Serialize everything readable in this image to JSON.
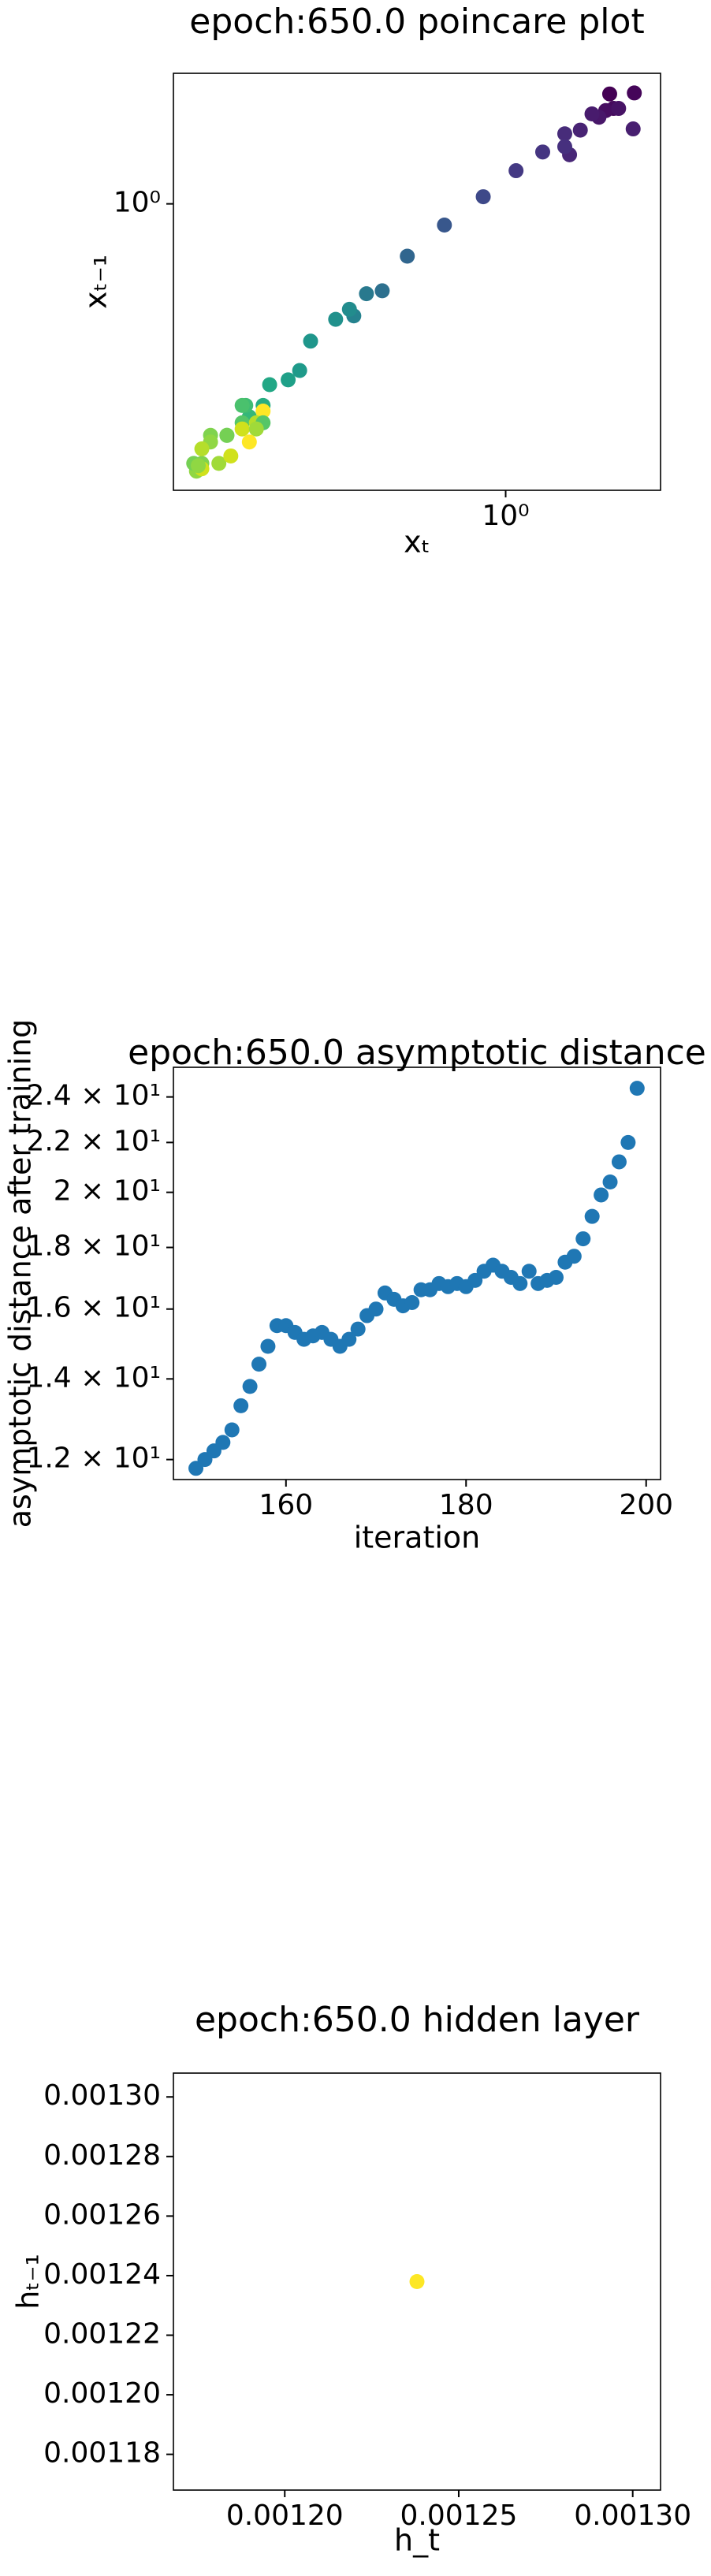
{
  "chart_data": [
    {
      "type": "scatter",
      "title": "epoch:650.0 poincare plot",
      "xlabel": "xₜ",
      "ylabel": "xₜ₋₁",
      "xscale": "log",
      "yscale": "log",
      "xlim": [
        0.21,
        2.07
      ],
      "ylim": [
        0.207,
        2.05
      ],
      "xticks": [
        {
          "value": 1,
          "label": "10⁰"
        }
      ],
      "yticks": [
        {
          "value": 1,
          "label": "10⁰"
        }
      ],
      "x": [
        1.63,
        1.83,
        1.66,
        1.6,
        1.7,
        1.55,
        1.5,
        1.82,
        1.42,
        1.35,
        1.32,
        1.32,
        1.19,
        1.05,
        0.9,
        0.75,
        0.63,
        0.56,
        0.52,
        0.49,
        0.48,
        0.45,
        0.4,
        0.38,
        0.36,
        0.33,
        0.32,
        0.31,
        0.3,
        0.295,
        0.29,
        0.29,
        0.27,
        0.27,
        0.25,
        0.25,
        0.26,
        0.24,
        0.24,
        0.234,
        0.231,
        0.24,
        0.236,
        0.32,
        0.31,
        0.29,
        0.32,
        0.31,
        0.3,
        0.275
      ],
      "y": [
        1.83,
        1.84,
        1.69,
        1.67,
        1.69,
        1.61,
        1.64,
        1.51,
        1.5,
        1.31,
        1.47,
        1.37,
        1.33,
        1.2,
        1.04,
        0.89,
        0.75,
        0.62,
        0.61,
        0.54,
        0.56,
        0.53,
        0.47,
        0.4,
        0.38,
        0.37,
        0.33,
        0.3,
        0.31,
        0.33,
        0.33,
        0.3,
        0.28,
        0.28,
        0.28,
        0.27,
        0.24,
        0.24,
        0.26,
        0.23,
        0.24,
        0.233,
        0.237,
        0.32,
        0.3,
        0.29,
        0.3,
        0.29,
        0.27,
        0.25
      ],
      "colors": [
        "#440154",
        "#450559",
        "#460a5d",
        "#470e61",
        "#471365",
        "#481769",
        "#481b6d",
        "#481f70",
        "#482374",
        "#482777",
        "#472c7a",
        "#46307e",
        "#453581",
        "#443983",
        "#3e4989",
        "#38578c",
        "#31668e",
        "#2d708e",
        "#29798e",
        "#25828e",
        "#228c8d",
        "#21918c",
        "#1f968b",
        "#1f9a8a",
        "#1fa088",
        "#22a785",
        "#27ad81",
        "#2db27d",
        "#35b779",
        "#3fbc73",
        "#4ac16d",
        "#56c667",
        "#63cb5f",
        "#75d054",
        "#7fd34e",
        "#90d743",
        "#a0da39",
        "#7fd34e",
        "#b5de2b",
        "#90d743",
        "#75d054",
        "#d0e11c",
        "#90d743",
        "#fde725",
        "#b5de2b",
        "#d0e11c",
        "#56c667",
        "#a0da39",
        "#fde725",
        "#d0e11c"
      ]
    },
    {
      "type": "scatter",
      "title": "epoch:650.0 asymptotic distance",
      "xlabel": "iteration",
      "ylabel": "asymptotic distance after training",
      "xscale": "linear",
      "yscale": "log",
      "color": "#1f77b4",
      "xlim": [
        147.5,
        201.6
      ],
      "ylim": [
        11.55,
        25.4
      ],
      "xticks": [
        160,
        180,
        200
      ],
      "yticks": [
        {
          "value": 12,
          "label": "1.2 × 10¹"
        },
        {
          "value": 14,
          "label": "1.4 × 10¹"
        },
        {
          "value": 16,
          "label": "1.6 × 10¹"
        },
        {
          "value": 18,
          "label": "1.8 × 10¹"
        },
        {
          "value": 20,
          "label": "2 × 10¹"
        },
        {
          "value": 22,
          "label": "2.2 × 10¹"
        },
        {
          "value": 24,
          "label": "2.4 × 10¹"
        }
      ],
      "x": [
        150,
        151,
        152,
        153,
        154,
        155,
        156,
        157,
        158,
        159,
        160,
        161,
        162,
        163,
        164,
        165,
        166,
        167,
        168,
        169,
        170,
        171,
        172,
        173,
        174,
        175,
        176,
        177,
        178,
        179,
        180,
        181,
        182,
        183,
        184,
        185,
        186,
        187,
        188,
        189,
        190,
        191,
        192,
        193,
        194,
        195,
        196,
        197,
        198,
        199
      ],
      "y": [
        11.8,
        12.0,
        12.2,
        12.4,
        12.7,
        13.3,
        13.8,
        14.4,
        14.9,
        15.5,
        15.5,
        15.3,
        15.1,
        15.2,
        15.3,
        15.1,
        14.9,
        15.1,
        15.4,
        15.8,
        16.0,
        16.5,
        16.3,
        16.1,
        16.2,
        16.6,
        16.6,
        16.8,
        16.7,
        16.8,
        16.7,
        16.9,
        17.2,
        17.4,
        17.2,
        17.0,
        16.8,
        17.2,
        16.8,
        16.9,
        17.0,
        17.5,
        17.7,
        18.3,
        19.1,
        19.9,
        20.4,
        21.2,
        22.0,
        24.4
      ]
    },
    {
      "type": "scatter",
      "title": "epoch:650.0 hidden layer",
      "xlabel": "h_t",
      "ylabel": "hₜ₋₁",
      "xscale": "linear",
      "yscale": "linear",
      "color": "#fde725",
      "xlim": [
        0.001168,
        0.001308
      ],
      "ylim": [
        0.001168,
        0.001308
      ],
      "xticks": [
        {
          "value": 0.0012,
          "label": "0.00120"
        },
        {
          "value": 0.00125,
          "label": "0.00125"
        },
        {
          "value": 0.0013,
          "label": "0.00130"
        }
      ],
      "yticks": [
        {
          "value": 0.00118,
          "label": "0.00118"
        },
        {
          "value": 0.0012,
          "label": "0.00120"
        },
        {
          "value": 0.00122,
          "label": "0.00122"
        },
        {
          "value": 0.00124,
          "label": "0.00124"
        },
        {
          "value": 0.00126,
          "label": "0.00126"
        },
        {
          "value": 0.00128,
          "label": "0.00128"
        },
        {
          "value": 0.0013,
          "label": "0.00130"
        }
      ],
      "x": [
        0.001238
      ],
      "y": [
        0.001238
      ]
    }
  ]
}
